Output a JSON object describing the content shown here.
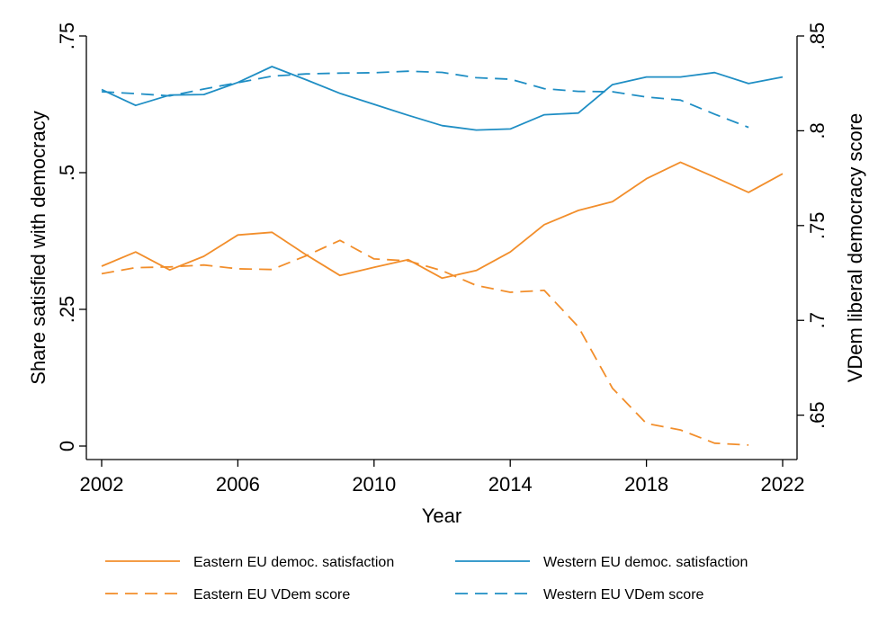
{
  "chart_data": {
    "type": "line",
    "title": "",
    "xlabel": "Year",
    "ylabel_left": "Share satisfied with democracy",
    "ylabel_right": "VDem liberal democracy score",
    "xlim": [
      2002,
      2022
    ],
    "x_ticks": [
      2002,
      2006,
      2010,
      2014,
      2018,
      2022
    ],
    "x_tick_labels": [
      "2002",
      "2006",
      "2010",
      "2014",
      "2018",
      "2022"
    ],
    "ylim_left": [
      0,
      0.75
    ],
    "y_ticks_left": [
      0,
      0.25,
      0.5,
      0.75
    ],
    "y_tick_labels_left": [
      "0",
      ".25",
      ".5",
      ".75"
    ],
    "ylim_right": [
      0.6337,
      0.85
    ],
    "y_ticks_right": [
      0.65,
      0.7,
      0.75,
      0.8,
      0.85
    ],
    "y_tick_labels_right": [
      ".65",
      ".7",
      ".75",
      ".8",
      ".85"
    ],
    "grid": false,
    "legend_position": "bottom",
    "series": [
      {
        "name": "Eastern EU democ. satisfaction",
        "axis": "left",
        "style": "solid",
        "color": "#f28e2b",
        "x": [
          2002,
          2003,
          2004,
          2005,
          2006,
          2007,
          2008,
          2009,
          2010,
          2011,
          2012,
          2013,
          2014,
          2015,
          2016,
          2017,
          2018,
          2019,
          2020,
          2021,
          2022
        ],
        "y": [
          0.329,
          0.355,
          0.322,
          0.347,
          0.386,
          0.391,
          0.35,
          0.312,
          0.327,
          0.341,
          0.307,
          0.321,
          0.355,
          0.405,
          0.431,
          0.447,
          0.489,
          0.519,
          0.492,
          0.464,
          0.498
        ]
      },
      {
        "name": "Western EU democ. satisfaction",
        "axis": "left",
        "style": "solid",
        "color": "#1f8ec4",
        "x": [
          2002,
          2003,
          2004,
          2005,
          2006,
          2007,
          2008,
          2009,
          2010,
          2011,
          2012,
          2013,
          2014,
          2015,
          2016,
          2017,
          2018,
          2019,
          2020,
          2021,
          2022
        ],
        "y": [
          0.652,
          0.623,
          0.642,
          0.643,
          0.665,
          0.694,
          0.67,
          0.645,
          0.625,
          0.605,
          0.586,
          0.578,
          0.58,
          0.606,
          0.609,
          0.661,
          0.675,
          0.675,
          0.683,
          0.663,
          0.675
        ]
      },
      {
        "name": "Eastern EU VDem score",
        "axis": "right",
        "style": "dashed",
        "color": "#f28e2b",
        "x": [
          2002,
          2003,
          2004,
          2005,
          2006,
          2007,
          2008,
          2009,
          2010,
          2011,
          2012,
          2013,
          2014,
          2015,
          2016,
          2017,
          2018,
          2019,
          2020,
          2021
        ],
        "y": [
          0.7246,
          0.7278,
          0.7282,
          0.7292,
          0.7272,
          0.7268,
          0.734,
          0.7422,
          0.7324,
          0.7314,
          0.7262,
          0.7184,
          0.7148,
          0.7158,
          0.6966,
          0.6642,
          0.6456,
          0.6422,
          0.6352,
          0.6342
        ]
      },
      {
        "name": "Western EU VDem score",
        "axis": "right",
        "style": "dashed",
        "color": "#1f8ec4",
        "x": [
          2002,
          2003,
          2004,
          2005,
          2006,
          2007,
          2008,
          2009,
          2010,
          2011,
          2012,
          2013,
          2014,
          2015,
          2016,
          2017,
          2018,
          2019,
          2020,
          2021
        ],
        "y": [
          0.8206,
          0.8196,
          0.8184,
          0.822,
          0.8254,
          0.8288,
          0.83,
          0.8304,
          0.8306,
          0.8314,
          0.8308,
          0.828,
          0.8272,
          0.8222,
          0.8208,
          0.8206,
          0.8178,
          0.8162,
          0.8088,
          0.8018
        ]
      }
    ]
  }
}
